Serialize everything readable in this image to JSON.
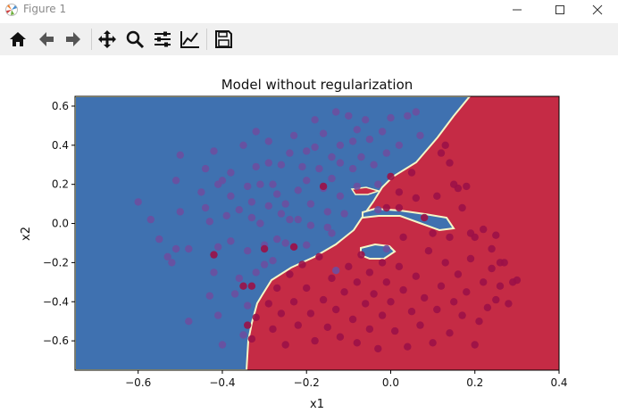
{
  "window": {
    "title": "Figure 1",
    "controls": [
      "minimize",
      "maximize",
      "close"
    ]
  },
  "toolbar": {
    "buttons": [
      {
        "icon": "home-icon",
        "action": "Home"
      },
      {
        "icon": "back-arrow-icon",
        "action": "Back"
      },
      {
        "icon": "forward-arrow-icon",
        "action": "Forward"
      },
      {
        "icon": "pan-icon",
        "action": "Pan"
      },
      {
        "icon": "zoom-icon",
        "action": "Zoom"
      },
      {
        "icon": "subplots-icon",
        "action": "Configure subplots"
      },
      {
        "icon": "edit-axes-icon",
        "action": "Edit axis"
      },
      {
        "icon": "save-icon",
        "action": "Save"
      }
    ]
  },
  "colors": {
    "blue_region": "#3f71b0",
    "red_region": "#c52b45",
    "boundary": "#f4f7c8",
    "point_blue": "#6b4fa0",
    "point_red": "#9b1147"
  },
  "chart_data": {
    "type": "scatter",
    "title": "Model without regularization",
    "xlabel": "x1",
    "ylabel": "x2",
    "xlim": [
      -0.75,
      0.4
    ],
    "ylim": [
      -0.75,
      0.65
    ],
    "xticks": [
      -0.6,
      -0.4,
      -0.2,
      0.0,
      0.2,
      0.4
    ],
    "xtick_labels": [
      "−0.6",
      "−0.4",
      "−0.2",
      "0.0",
      "0.2",
      "0.4"
    ],
    "yticks": [
      -0.6,
      -0.4,
      -0.2,
      0.0,
      0.2,
      0.4,
      0.6
    ],
    "ytick_labels": [
      "−0.6",
      "−0.4",
      "−0.2",
      "0.0",
      "0.2",
      "0.4",
      "0.6"
    ],
    "background": "decision regions: blue (class 0) on the left, red (class 1) on the right, thin pale boundary",
    "series": [
      {
        "class": 0,
        "points": [
          [
            -0.6,
            0.11
          ],
          [
            -0.57,
            0.02
          ],
          [
            -0.55,
            -0.08
          ],
          [
            -0.53,
            -0.17
          ],
          [
            -0.52,
            -0.2
          ],
          [
            -0.51,
            -0.13
          ],
          [
            -0.5,
            0.06
          ],
          [
            -0.51,
            0.22
          ],
          [
            -0.5,
            0.35
          ],
          [
            -0.48,
            -0.13
          ],
          [
            -0.48,
            -0.5
          ],
          [
            -0.45,
            0.16
          ],
          [
            -0.44,
            0.08
          ],
          [
            -0.44,
            0.28
          ],
          [
            -0.43,
            0.01
          ],
          [
            -0.43,
            -0.37
          ],
          [
            -0.42,
            0.37
          ],
          [
            -0.42,
            -0.25
          ],
          [
            -0.41,
            0.2
          ],
          [
            -0.41,
            -0.12
          ],
          [
            -0.41,
            -0.47
          ],
          [
            -0.4,
            0.22
          ],
          [
            -0.4,
            -0.62
          ],
          [
            -0.39,
            0.04
          ],
          [
            -0.38,
            0.26
          ],
          [
            -0.38,
            0.14
          ],
          [
            -0.38,
            -0.09
          ],
          [
            -0.37,
            -0.36
          ],
          [
            -0.36,
            0.07
          ],
          [
            -0.36,
            -0.28
          ],
          [
            -0.35,
            0.4
          ],
          [
            -0.35,
            -0.57
          ],
          [
            -0.34,
            -0.42
          ],
          [
            -0.34,
            0.19
          ],
          [
            -0.34,
            -0.14
          ],
          [
            -0.33,
            0.03
          ],
          [
            -0.33,
            0.11
          ],
          [
            -0.32,
            0.29
          ],
          [
            -0.32,
            0.47
          ],
          [
            -0.32,
            -0.25
          ],
          [
            -0.31,
            0.2
          ],
          [
            -0.31,
            0.0
          ],
          [
            -0.3,
            -0.21
          ],
          [
            -0.3,
            -0.11
          ],
          [
            -0.29,
            0.42
          ],
          [
            -0.29,
            0.31
          ],
          [
            -0.29,
            0.09
          ],
          [
            -0.28,
            -0.19
          ],
          [
            -0.28,
            0.2
          ],
          [
            -0.27,
            -0.08
          ],
          [
            -0.27,
            0.15
          ],
          [
            -0.26,
            0.05
          ],
          [
            -0.26,
            0.3
          ],
          [
            -0.25,
            -0.1
          ],
          [
            -0.25,
            0.1
          ],
          [
            -0.24,
            0.02
          ],
          [
            -0.24,
            0.36
          ],
          [
            -0.23,
            -0.12
          ],
          [
            -0.23,
            0.45
          ],
          [
            -0.22,
            0.17
          ],
          [
            -0.22,
            0.02
          ],
          [
            -0.21,
            0.29
          ],
          [
            -0.2,
            0.37
          ],
          [
            -0.2,
            -0.11
          ],
          [
            -0.2,
            0.22
          ],
          [
            -0.19,
            0.1
          ],
          [
            -0.19,
            -0.01
          ],
          [
            -0.18,
            0.53
          ],
          [
            -0.18,
            0.39
          ],
          [
            -0.17,
            0.28
          ],
          [
            -0.16,
            0.46
          ],
          [
            -0.16,
            0.18
          ],
          [
            -0.15,
            0.06
          ],
          [
            -0.15,
            -0.02
          ],
          [
            -0.14,
            0.34
          ],
          [
            -0.14,
            0.23
          ],
          [
            -0.14,
            -0.05
          ],
          [
            -0.13,
            0.57
          ],
          [
            -0.12,
            0.4
          ],
          [
            -0.12,
            0.31
          ],
          [
            -0.12,
            0.14
          ],
          [
            -0.11,
            0.05
          ],
          [
            -0.1,
            0.55
          ],
          [
            -0.09,
            0.42
          ],
          [
            -0.09,
            0.28
          ],
          [
            -0.08,
            0.19
          ],
          [
            -0.08,
            0.48
          ],
          [
            -0.07,
            0.34
          ],
          [
            -0.06,
            0.53
          ],
          [
            -0.05,
            0.43
          ],
          [
            -0.04,
            0.3
          ],
          [
            -0.03,
            0.2
          ],
          [
            -0.02,
            0.47
          ],
          [
            -0.01,
            0.36
          ],
          [
            0.0,
            0.54
          ],
          [
            0.02,
            0.4
          ],
          [
            0.04,
            0.55
          ],
          [
            0.06,
            0.57
          ],
          [
            0.07,
            0.45
          ],
          [
            -0.13,
            -0.24
          ],
          [
            -0.01,
            -0.13
          ],
          [
            -0.03,
            0.07
          ]
        ]
      },
      {
        "class": 1,
        "points": [
          [
            -0.42,
            -0.16
          ],
          [
            -0.35,
            -0.32
          ],
          [
            -0.33,
            -0.32
          ],
          [
            -0.3,
            -0.13
          ],
          [
            -0.23,
            -0.12
          ],
          [
            -0.16,
            0.19
          ],
          [
            -0.34,
            -0.52
          ],
          [
            -0.33,
            -0.59
          ],
          [
            -0.32,
            -0.48
          ],
          [
            -0.29,
            -0.41
          ],
          [
            -0.28,
            -0.54
          ],
          [
            -0.27,
            -0.33
          ],
          [
            -0.26,
            -0.46
          ],
          [
            -0.25,
            -0.62
          ],
          [
            -0.24,
            -0.26
          ],
          [
            -0.23,
            -0.4
          ],
          [
            -0.22,
            -0.52
          ],
          [
            -0.21,
            -0.21
          ],
          [
            -0.2,
            -0.33
          ],
          [
            -0.19,
            -0.46
          ],
          [
            -0.18,
            -0.6
          ],
          [
            -0.17,
            -0.17
          ],
          [
            -0.16,
            -0.39
          ],
          [
            -0.15,
            -0.53
          ],
          [
            -0.14,
            -0.28
          ],
          [
            -0.13,
            -0.44
          ],
          [
            -0.12,
            -0.58
          ],
          [
            -0.11,
            -0.35
          ],
          [
            -0.1,
            -0.22
          ],
          [
            -0.09,
            -0.49
          ],
          [
            -0.08,
            -0.3
          ],
          [
            -0.08,
            -0.61
          ],
          [
            -0.07,
            -0.16
          ],
          [
            -0.06,
            -0.41
          ],
          [
            -0.05,
            -0.25
          ],
          [
            -0.05,
            -0.54
          ],
          [
            -0.04,
            -0.36
          ],
          [
            -0.03,
            -0.64
          ],
          [
            -0.02,
            -0.2
          ],
          [
            -0.02,
            -0.47
          ],
          [
            -0.01,
            -0.3
          ],
          [
            0.0,
            -0.4
          ],
          [
            0.01,
            -0.55
          ],
          [
            0.02,
            -0.22
          ],
          [
            0.03,
            -0.34
          ],
          [
            0.04,
            -0.63
          ],
          [
            0.05,
            -0.45
          ],
          [
            0.06,
            -0.27
          ],
          [
            0.07,
            -0.52
          ],
          [
            0.08,
            -0.38
          ],
          [
            0.09,
            -0.14
          ],
          [
            0.1,
            -0.61
          ],
          [
            0.11,
            -0.44
          ],
          [
            0.12,
            -0.32
          ],
          [
            0.13,
            -0.2
          ],
          [
            0.14,
            -0.56
          ],
          [
            0.15,
            -0.4
          ],
          [
            0.16,
            -0.26
          ],
          [
            0.17,
            -0.47
          ],
          [
            0.18,
            -0.35
          ],
          [
            0.19,
            -0.18
          ],
          [
            0.2,
            -0.62
          ],
          [
            0.21,
            -0.5
          ],
          [
            0.22,
            -0.3
          ],
          [
            0.23,
            -0.43
          ],
          [
            0.24,
            -0.23
          ],
          [
            0.25,
            -0.39
          ],
          [
            0.26,
            -0.32
          ],
          [
            0.27,
            -0.2
          ],
          [
            0.28,
            -0.41
          ],
          [
            0.29,
            -0.3
          ],
          [
            0.3,
            -0.29
          ],
          [
            0.22,
            -0.03
          ],
          [
            0.25,
            -0.06
          ],
          [
            0.24,
            -0.13
          ],
          [
            0.26,
            -0.2
          ],
          [
            0.11,
            0.14
          ],
          [
            0.12,
            0.36
          ],
          [
            0.13,
            0.4
          ],
          [
            0.14,
            0.31
          ],
          [
            0.15,
            0.2
          ],
          [
            0.16,
            0.18
          ],
          [
            0.17,
            0.08
          ],
          [
            0.18,
            0.19
          ],
          [
            0.08,
            0.03
          ],
          [
            0.1,
            -0.05
          ],
          [
            0.06,
            0.13
          ],
          [
            0.05,
            0.26
          ],
          [
            0.02,
            0.16
          ],
          [
            0.02,
            0.08
          ],
          [
            0.0,
            0.24
          ],
          [
            -0.01,
            0.08
          ],
          [
            0.03,
            -0.07
          ],
          [
            0.14,
            -0.07
          ],
          [
            0.19,
            -0.05
          ],
          [
            0.2,
            -0.07
          ]
        ]
      }
    ]
  }
}
